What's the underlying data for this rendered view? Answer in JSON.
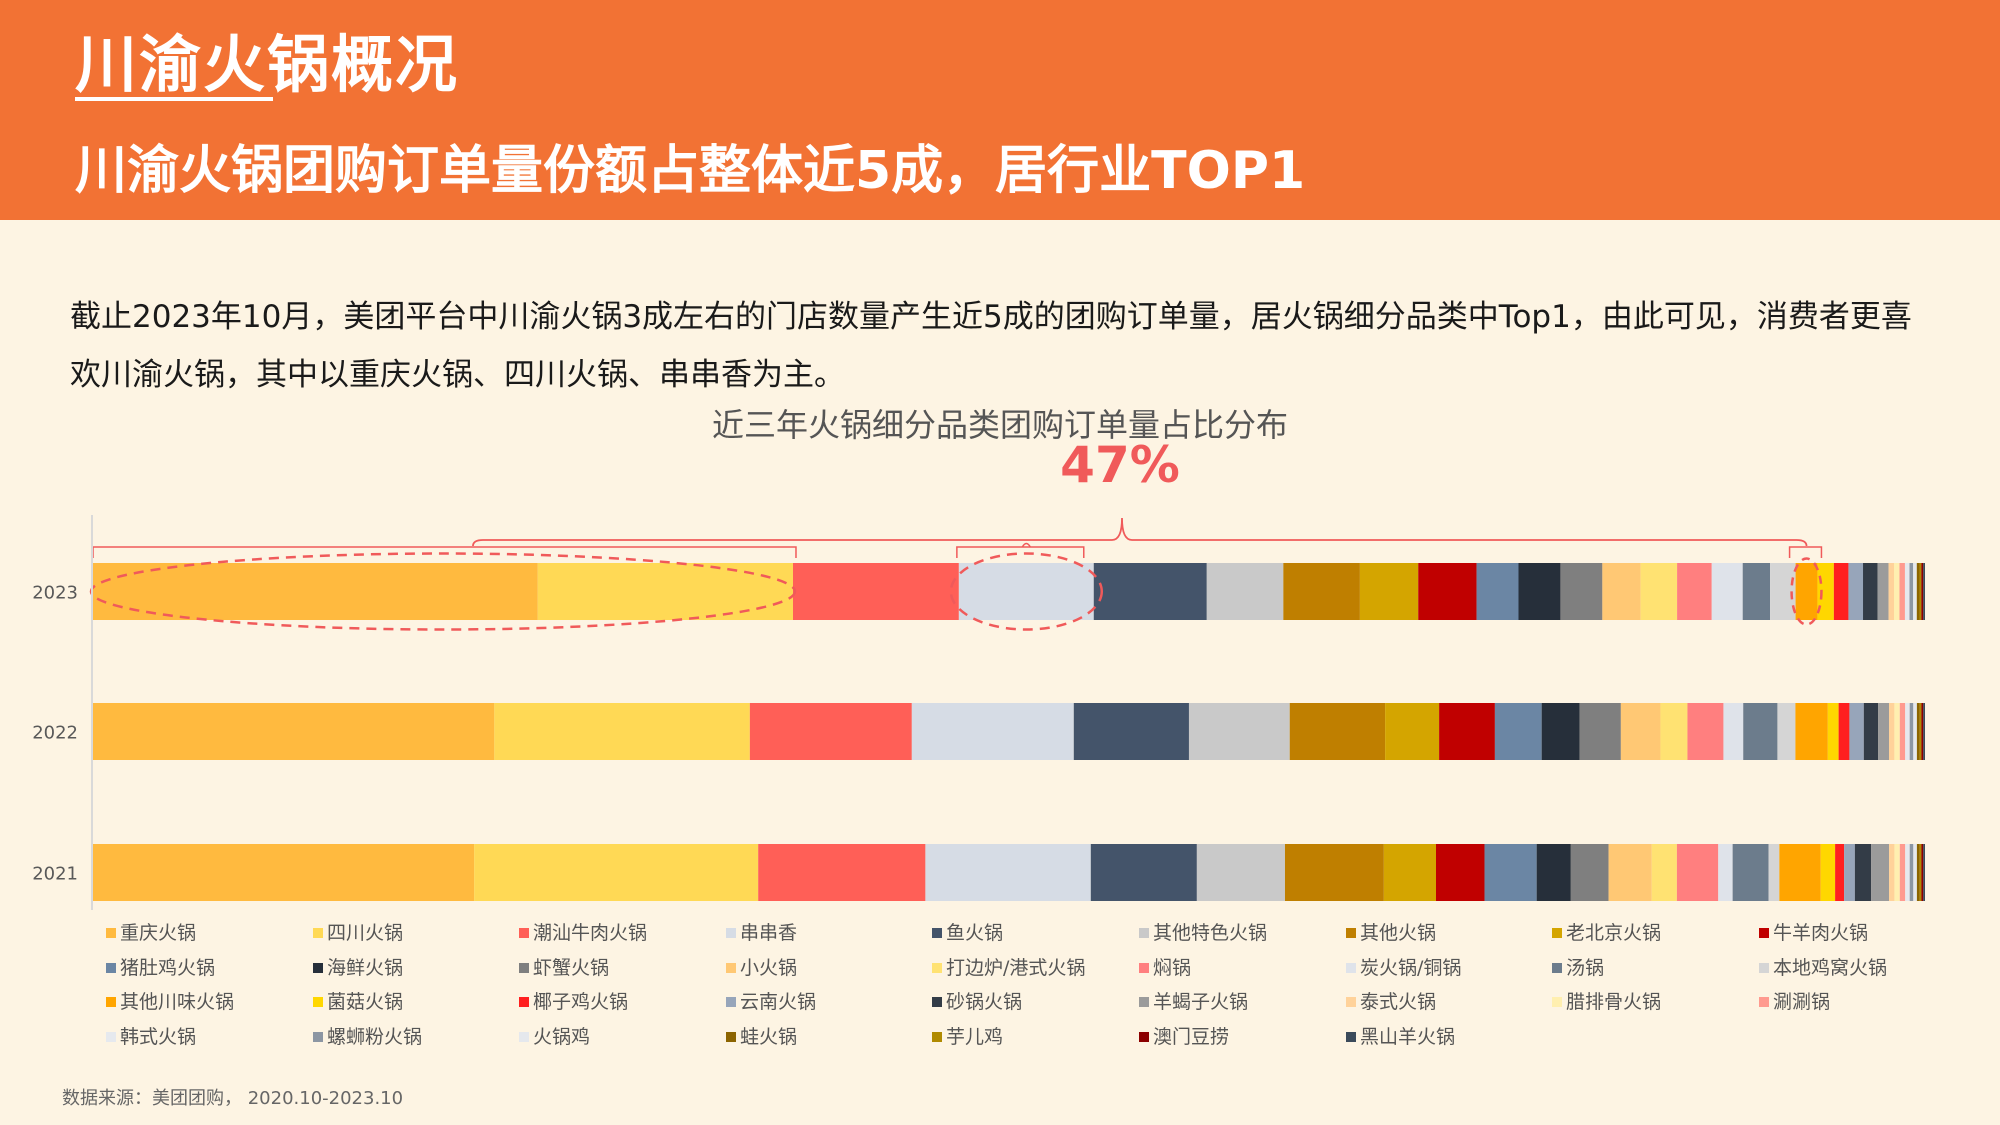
{
  "header": {
    "title": "川渝火锅概况",
    "headline": "川渝火锅团购订单量份额占整体近5成，居行业TOP1"
  },
  "intro_text": "截止2023年10月，美团平台中川渝火锅3成左右的门店数量产生近5成的团购订单量，居火锅细分品类中Top1，由此可见，消费者更喜欢川渝火锅，其中以重庆火锅、四川火锅、串串香为主。",
  "source": "数据来源：美团团购， 2020.10-2023.10",
  "chart_data": {
    "type": "bar",
    "orientation": "horizontal",
    "stacked": true,
    "title": "近三年火锅细分品类团购订单量占比分布",
    "annotation": "47%",
    "categories": [
      "2023",
      "2022",
      "2021"
    ],
    "xlim": [
      0,
      100
    ],
    "legend_position": "bottom",
    "series": [
      {
        "name": "重庆火锅",
        "color": "#FFBA3F",
        "values": [
          24.4,
          22.3,
          21.2
        ]
      },
      {
        "name": "四川火锅",
        "color": "#FFD955",
        "values": [
          14.0,
          14.2,
          15.8
        ]
      },
      {
        "name": "潮汕牛肉火锅",
        "color": "#FF5F57",
        "values": [
          9.1,
          9.0,
          9.3
        ]
      },
      {
        "name": "串串香",
        "color": "#D6DCE5",
        "values": [
          7.4,
          9.0,
          9.2
        ]
      },
      {
        "name": "鱼火锅",
        "color": "#44546A",
        "values": [
          6.2,
          6.4,
          5.9
        ]
      },
      {
        "name": "其他特色火锅",
        "color": "#C9C9C9",
        "values": [
          4.2,
          5.6,
          4.9
        ]
      },
      {
        "name": "其他火锅",
        "color": "#BF7F00",
        "values": [
          4.2,
          5.3,
          5.5
        ]
      },
      {
        "name": "老北京火锅",
        "color": "#D4A500",
        "values": [
          3.2,
          3.0,
          2.9
        ]
      },
      {
        "name": "牛羊肉火锅",
        "color": "#C00000",
        "values": [
          3.2,
          3.1,
          2.7
        ]
      },
      {
        "name": "猪肚鸡火锅",
        "color": "#6B86A4",
        "values": [
          2.3,
          2.6,
          2.9
        ]
      },
      {
        "name": "海鲜火锅",
        "color": "#262F3A",
        "values": [
          2.3,
          2.1,
          1.9
        ]
      },
      {
        "name": "虾蟹火锅",
        "color": "#7F7F7F",
        "values": [
          2.3,
          2.3,
          2.1
        ]
      },
      {
        "name": "小火锅",
        "color": "#FFC874",
        "values": [
          2.1,
          2.2,
          2.4
        ]
      },
      {
        "name": "打边炉/港式火锅",
        "color": "#FFE272",
        "values": [
          2.0,
          1.5,
          1.4
        ]
      },
      {
        "name": "焖锅",
        "color": "#FF7F7F",
        "values": [
          1.9,
          2.0,
          2.3
        ]
      },
      {
        "name": "炭火锅/铜锅",
        "color": "#DFE3EA",
        "values": [
          1.7,
          1.1,
          0.8
        ]
      },
      {
        "name": "汤锅",
        "color": "#6C7C8C",
        "values": [
          1.5,
          1.9,
          2.0
        ]
      },
      {
        "name": "本地鸡窝火锅",
        "color": "#D5D5D5",
        "values": [
          1.4,
          1.0,
          0.6
        ]
      },
      {
        "name": "其他川味火锅",
        "color": "#FFA500",
        "values": [
          1.2,
          1.8,
          2.3
        ]
      },
      {
        "name": "菌菇火锅",
        "color": "#FFD700",
        "values": [
          0.9,
          0.6,
          0.8
        ]
      },
      {
        "name": "椰子鸡火锅",
        "color": "#FF1F1F",
        "values": [
          0.8,
          0.6,
          0.5
        ]
      },
      {
        "name": "云南火锅",
        "color": "#97A5BA",
        "values": [
          0.8,
          0.8,
          0.6
        ]
      },
      {
        "name": "砂锅火锅",
        "color": "#333C47",
        "values": [
          0.8,
          0.8,
          0.9
        ]
      },
      {
        "name": "羊蝎子火锅",
        "color": "#9B9B9B",
        "values": [
          0.6,
          0.6,
          1.0
        ]
      },
      {
        "name": "泰式火锅",
        "color": "#FFD29A",
        "values": [
          0.3,
          0.3,
          0.3
        ]
      },
      {
        "name": "腊排骨火锅",
        "color": "#FFEFB0",
        "values": [
          0.3,
          0.3,
          0.3
        ]
      },
      {
        "name": "涮涮锅",
        "color": "#FF9A8F",
        "values": [
          0.3,
          0.3,
          0.3
        ]
      },
      {
        "name": "韩式火锅",
        "color": "#E6E9EE",
        "values": [
          0.25,
          0.25,
          0.25
        ]
      },
      {
        "name": "螺蛳粉火锅",
        "color": "#8C96A3",
        "values": [
          0.2,
          0.2,
          0.2
        ]
      },
      {
        "name": "火锅鸡",
        "color": "#E5E8ED",
        "values": [
          0.2,
          0.2,
          0.2
        ]
      },
      {
        "name": "蛙火锅",
        "color": "#8C6400",
        "values": [
          0.15,
          0.15,
          0.15
        ]
      },
      {
        "name": "芋儿鸡",
        "color": "#B08A00",
        "values": [
          0.1,
          0.1,
          0.1
        ]
      },
      {
        "name": "澳门豆捞",
        "color": "#8B0000",
        "values": [
          0.1,
          0.1,
          0.1
        ]
      },
      {
        "name": "黑山羊火锅",
        "color": "#3B4A5A",
        "values": [
          0.1,
          0.1,
          0.1
        ]
      }
    ],
    "highlight_color": "#F05A5A"
  }
}
